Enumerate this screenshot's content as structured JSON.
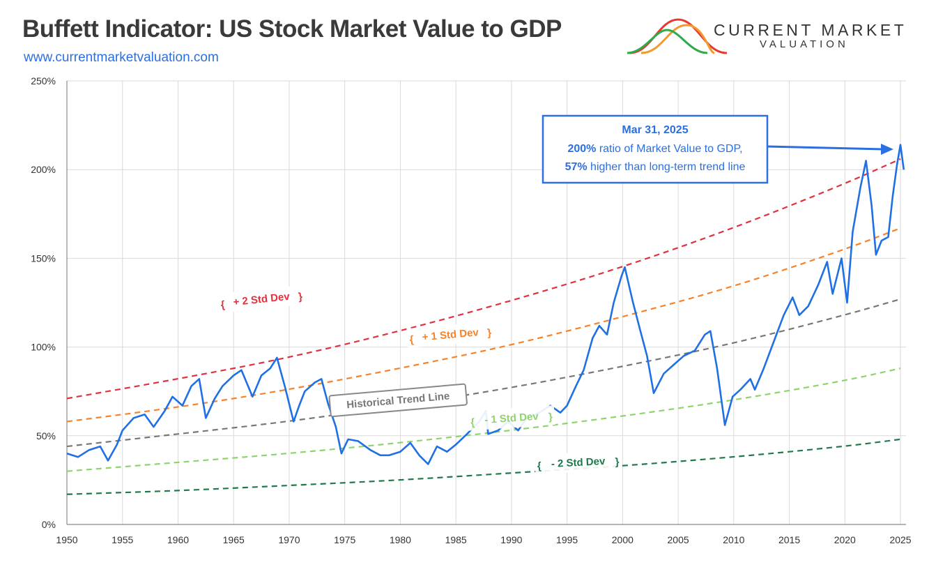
{
  "header": {
    "title": "Buffett Indicator: US Stock Market Value to GDP",
    "subtitle": "www.currentmarketvaluation.com"
  },
  "logo": {
    "line1": "CURRENT MARKET",
    "line2": "VALUATION",
    "icon": "bell-curves-icon",
    "colors": [
      "#e8392f",
      "#f29a2e",
      "#2eaa4a"
    ]
  },
  "callout": {
    "date": "Mar 31, 2025",
    "line1_bold": "200%",
    "line1_rest": " ratio of Market Value to GDP,",
    "line2_bold": "57%",
    "line2_rest": " higher than long-term trend line"
  },
  "colors": {
    "indicator": "#1f6fe5",
    "plus2": "#e0313f",
    "plus1": "#f6822a",
    "trend": "#777777",
    "minus1": "#8fd46a",
    "minus2": "#1e7a4a",
    "grid": "#d9d9d9"
  },
  "chart_data": {
    "type": "line",
    "title": "Buffett Indicator: US Stock Market Value to GDP",
    "xlabel": "",
    "ylabel": "",
    "xlim": [
      1950,
      2025.5
    ],
    "ylim": [
      0,
      250
    ],
    "x_ticks": [
      1950,
      1955,
      1960,
      1965,
      1970,
      1975,
      1980,
      1985,
      1990,
      1995,
      2000,
      2005,
      2010,
      2015,
      2020,
      2025
    ],
    "y_ticks": [
      0,
      50,
      100,
      150,
      200,
      250
    ],
    "y_tick_labels": [
      "0%",
      "50%",
      "100%",
      "150%",
      "200%",
      "250%"
    ],
    "grid": true,
    "bands": [
      {
        "name": "+ 2 Std Dev",
        "points": [
          [
            1950,
            71
          ],
          [
            1960,
            82
          ],
          [
            1970,
            94
          ],
          [
            1980,
            109
          ],
          [
            1990,
            126
          ],
          [
            2000,
            145
          ],
          [
            2010,
            167
          ],
          [
            2020,
            192
          ],
          [
            2025,
            206
          ]
        ]
      },
      {
        "name": "+ 1 Std Dev",
        "points": [
          [
            1950,
            58
          ],
          [
            1960,
            66
          ],
          [
            1970,
            76
          ],
          [
            1980,
            88
          ],
          [
            1990,
            101
          ],
          [
            2000,
            117
          ],
          [
            2010,
            134
          ],
          [
            2020,
            155
          ],
          [
            2025,
            167
          ]
        ]
      },
      {
        "name": "Historical Trend Line",
        "points": [
          [
            1950,
            44
          ],
          [
            1960,
            51
          ],
          [
            1970,
            58
          ],
          [
            1980,
            67
          ],
          [
            1990,
            77
          ],
          [
            2000,
            89
          ],
          [
            2010,
            102
          ],
          [
            2020,
            118
          ],
          [
            2025,
            127
          ]
        ]
      },
      {
        "name": "- 1 Std Dev",
        "points": [
          [
            1950,
            30
          ],
          [
            1960,
            35
          ],
          [
            1970,
            40
          ],
          [
            1980,
            46
          ],
          [
            1990,
            53
          ],
          [
            2000,
            61
          ],
          [
            2010,
            70
          ],
          [
            2020,
            81
          ],
          [
            2025,
            88
          ]
        ]
      },
      {
        "name": "- 2 Std Dev",
        "points": [
          [
            1950,
            17
          ],
          [
            1960,
            19
          ],
          [
            1970,
            22
          ],
          [
            1980,
            25
          ],
          [
            1990,
            29
          ],
          [
            2000,
            33
          ],
          [
            2010,
            38
          ],
          [
            2020,
            44
          ],
          [
            2025,
            48
          ]
        ]
      }
    ],
    "series": [
      {
        "values": [
          [
            1950,
            40
          ],
          [
            1951,
            38
          ],
          [
            1952,
            42
          ],
          [
            1953,
            44
          ],
          [
            1953.7,
            36
          ],
          [
            1954.5,
            45
          ],
          [
            1955,
            53
          ],
          [
            1956,
            60
          ],
          [
            1957,
            62
          ],
          [
            1957.8,
            55
          ],
          [
            1958.8,
            64
          ],
          [
            1959.5,
            72
          ],
          [
            1960.4,
            67
          ],
          [
            1961.2,
            78
          ],
          [
            1961.9,
            82
          ],
          [
            1962.5,
            60
          ],
          [
            1963.3,
            71
          ],
          [
            1964,
            78
          ],
          [
            1965,
            84
          ],
          [
            1965.7,
            87
          ],
          [
            1966.7,
            72
          ],
          [
            1967.5,
            84
          ],
          [
            1968.3,
            88
          ],
          [
            1968.9,
            94
          ],
          [
            1969.6,
            78
          ],
          [
            1970.4,
            58
          ],
          [
            1970.9,
            67
          ],
          [
            1971.4,
            75
          ],
          [
            1972.3,
            80
          ],
          [
            1972.9,
            82
          ],
          [
            1973.5,
            68
          ],
          [
            1974.2,
            55
          ],
          [
            1974.7,
            40
          ],
          [
            1975.3,
            48
          ],
          [
            1976.2,
            47
          ],
          [
            1977.3,
            42
          ],
          [
            1978.2,
            39
          ],
          [
            1979,
            39
          ],
          [
            1980,
            41
          ],
          [
            1980.9,
            46
          ],
          [
            1981.7,
            39
          ],
          [
            1982.5,
            34
          ],
          [
            1983.3,
            44
          ],
          [
            1984.2,
            41
          ],
          [
            1985,
            45
          ],
          [
            1986,
            51
          ],
          [
            1987.1,
            58
          ],
          [
            1987.7,
            64
          ],
          [
            1987.9,
            51
          ],
          [
            1988.8,
            53
          ],
          [
            1989.7,
            58
          ],
          [
            1990.6,
            53
          ],
          [
            1991.4,
            60
          ],
          [
            1992.5,
            63
          ],
          [
            1993.5,
            67
          ],
          [
            1994.4,
            63
          ],
          [
            1995,
            67
          ],
          [
            1995.8,
            78
          ],
          [
            1996.5,
            87
          ],
          [
            1997.3,
            105
          ],
          [
            1997.9,
            112
          ],
          [
            1998.6,
            107
          ],
          [
            1999.2,
            125
          ],
          [
            1999.9,
            140
          ],
          [
            2000.2,
            145
          ],
          [
            2000.9,
            126
          ],
          [
            2001.6,
            109
          ],
          [
            2002.2,
            95
          ],
          [
            2002.8,
            74
          ],
          [
            2003.7,
            85
          ],
          [
            2004.6,
            90
          ],
          [
            2005.5,
            95
          ],
          [
            2006.5,
            98
          ],
          [
            2007.4,
            107
          ],
          [
            2007.9,
            109
          ],
          [
            2008.5,
            88
          ],
          [
            2009.2,
            56
          ],
          [
            2009.9,
            72
          ],
          [
            2010.6,
            76
          ],
          [
            2011.5,
            82
          ],
          [
            2011.9,
            76
          ],
          [
            2012.7,
            88
          ],
          [
            2013.6,
            103
          ],
          [
            2014.5,
            118
          ],
          [
            2015.3,
            128
          ],
          [
            2015.9,
            118
          ],
          [
            2016.7,
            123
          ],
          [
            2017.6,
            135
          ],
          [
            2018.4,
            148
          ],
          [
            2018.9,
            130
          ],
          [
            2019.7,
            150
          ],
          [
            2020.2,
            125
          ],
          [
            2020.7,
            165
          ],
          [
            2021.4,
            190
          ],
          [
            2021.9,
            205
          ],
          [
            2022.4,
            180
          ],
          [
            2022.8,
            152
          ],
          [
            2023.3,
            160
          ],
          [
            2023.9,
            162
          ],
          [
            2024.3,
            185
          ],
          [
            2024.7,
            203
          ],
          [
            2025.0,
            214
          ],
          [
            2025.3,
            200
          ]
        ]
      }
    ]
  }
}
